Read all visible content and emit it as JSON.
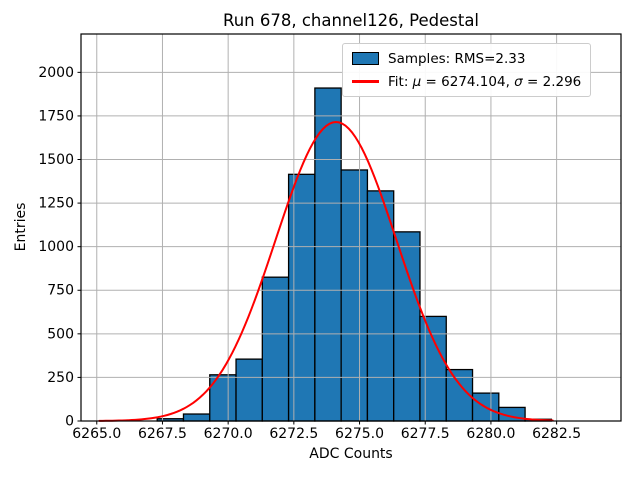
{
  "chart_data": {
    "type": "bar",
    "subtype": "histogram-with-gaussian-fit",
    "title": "Run 678, channel126, Pedestal",
    "xlabel": "ADC Counts",
    "ylabel": "Entries",
    "xlim": [
      6264.4,
      6284.95
    ],
    "ylim": [
      0,
      2220
    ],
    "xticks": [
      6265.0,
      6267.5,
      6270.0,
      6272.5,
      6275.0,
      6277.5,
      6280.0,
      6282.5
    ],
    "xtick_labels": [
      "6265.0",
      "6267.5",
      "6270.0",
      "6272.5",
      "6275.0",
      "6277.5",
      "6280.0",
      "6282.5"
    ],
    "yticks": [
      0,
      250,
      500,
      750,
      1000,
      1250,
      1500,
      1750,
      2000
    ],
    "ytick_labels": [
      "0",
      "250",
      "500",
      "750",
      "1000",
      "1250",
      "1500",
      "1750",
      "2000"
    ],
    "grid": true,
    "grid_color": "#b0b0b0",
    "axis_color": "#000000",
    "background_color": "#ffffff",
    "histogram": {
      "bin_start": 6267.3,
      "bin_width": 1.0,
      "counts": [
        13,
        40,
        265,
        355,
        825,
        1415,
        1910,
        1440,
        1320,
        1085,
        600,
        295,
        160,
        78,
        10
      ],
      "fill_color": "#1f77b4",
      "edge_color": "#000000"
    },
    "fit_curve": {
      "type": "gaussian",
      "mu": 6274.104,
      "sigma": 2.296,
      "amplitude": 1715,
      "x_range": [
        6265.1,
        6282.35
      ],
      "color": "#ff0000"
    },
    "legend": {
      "position": "upper right",
      "border_color": "#cccccc",
      "entries": [
        {
          "swatch": "patch",
          "color": "#1f77b4",
          "label": "Samples: RMS=2.33"
        },
        {
          "swatch": "line",
          "color": "#ff0000",
          "label": "Fit: μ = 6274.104, σ = 2.296"
        }
      ]
    }
  }
}
